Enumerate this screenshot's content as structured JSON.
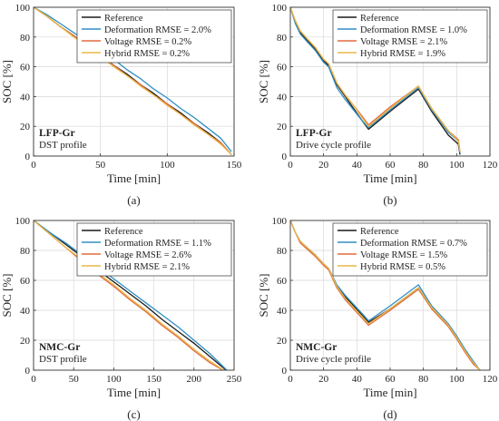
{
  "chart_data": [
    {
      "type": "line",
      "panel_label": "(a)",
      "annotation_title": "LFP-Gr",
      "annotation_subtitle": "DST profile",
      "xlabel": "Time [min]",
      "ylabel": "SOC [%]",
      "xlim": [
        0,
        150
      ],
      "ylim": [
        0,
        100
      ],
      "xticks": [
        0,
        50,
        100,
        150
      ],
      "yticks": [
        0,
        20,
        40,
        60,
        80,
        100
      ],
      "grid": true,
      "legend_position": "top-right",
      "colors": {
        "Reference": "#1a1a1a",
        "Deformation": "#2f8fc6",
        "Voltage": "#e26b3d",
        "Hybrid": "#e9b949"
      },
      "series": [
        {
          "name": "Reference",
          "x": [
            0,
            10,
            20,
            30,
            40,
            50,
            60,
            70,
            80,
            90,
            100,
            110,
            120,
            130,
            140,
            148
          ],
          "y": [
            100,
            94,
            87,
            81,
            74,
            68,
            61,
            55,
            48,
            42,
            35,
            29,
            22,
            16,
            9,
            1
          ]
        },
        {
          "name": "Deformation RMSE = 2.0%",
          "x": [
            0,
            10,
            20,
            30,
            40,
            50,
            60,
            70,
            80,
            90,
            100,
            110,
            120,
            130,
            140,
            148
          ],
          "y": [
            100,
            95,
            89,
            83,
            77,
            71,
            65,
            58,
            52,
            45,
            39,
            32,
            26,
            19,
            12,
            3
          ]
        },
        {
          "name": "Voltage RMSE = 0.2%",
          "x": [
            0,
            10,
            20,
            30,
            40,
            50,
            60,
            70,
            80,
            90,
            100,
            110,
            120,
            130,
            140,
            148
          ],
          "y": [
            100,
            94,
            87,
            81,
            74,
            67,
            61,
            54,
            48,
            41,
            35,
            28,
            22,
            15,
            9,
            1
          ]
        },
        {
          "name": "Hybrid RMSE = 0.2%",
          "x": [
            0,
            10,
            20,
            30,
            40,
            50,
            60,
            70,
            80,
            90,
            100,
            110,
            120,
            130,
            140,
            148
          ],
          "y": [
            100,
            94,
            87,
            80,
            74,
            67,
            60,
            54,
            47,
            41,
            34,
            28,
            21,
            15,
            8,
            1
          ]
        }
      ]
    },
    {
      "type": "line",
      "panel_label": "(b)",
      "annotation_title": "LFP-Gr",
      "annotation_subtitle": "Drive cycle profile",
      "xlabel": "Time [min]",
      "ylabel": "SOC [%]",
      "xlim": [
        0,
        120
      ],
      "ylim": [
        0,
        100
      ],
      "xticks": [
        0,
        20,
        40,
        60,
        80,
        100,
        120
      ],
      "yticks": [
        0,
        20,
        40,
        60,
        80,
        100
      ],
      "grid": true,
      "legend_position": "top-right",
      "colors": {
        "Reference": "#1a1a1a",
        "Deformation": "#2f8fc6",
        "Voltage": "#e26b3d",
        "Hybrid": "#e9b949"
      },
      "series": [
        {
          "name": "Reference",
          "x": [
            0,
            3,
            6,
            10,
            15,
            20,
            23,
            28,
            33,
            38,
            43,
            47,
            60,
            77,
            85,
            95,
            101,
            102
          ],
          "y": [
            100,
            90,
            83,
            78,
            72,
            64,
            61,
            48,
            40,
            32,
            24,
            18,
            30,
            45,
            30,
            14,
            8,
            1
          ]
        },
        {
          "name": "Deformation RMSE = 1.0%",
          "x": [
            0,
            3,
            6,
            10,
            15,
            20,
            23,
            28,
            33,
            38,
            43,
            47,
            60,
            77,
            85,
            95,
            101,
            102
          ],
          "y": [
            100,
            89,
            82,
            77,
            71,
            63,
            60,
            46,
            38,
            31,
            24,
            19,
            31,
            46,
            31,
            16,
            10,
            2
          ]
        },
        {
          "name": "Voltage RMSE = 2.1%",
          "x": [
            0,
            3,
            6,
            10,
            15,
            20,
            23,
            28,
            33,
            38,
            43,
            47,
            60,
            77,
            85,
            95,
            101,
            102
          ],
          "y": [
            100,
            91,
            84,
            79,
            73,
            65,
            62,
            49,
            41,
            34,
            27,
            21,
            33,
            47,
            32,
            17,
            11,
            3
          ]
        },
        {
          "name": "Hybrid RMSE = 1.9%",
          "x": [
            0,
            3,
            6,
            10,
            15,
            20,
            23,
            28,
            33,
            38,
            43,
            47,
            60,
            77,
            85,
            95,
            101,
            102
          ],
          "y": [
            100,
            91,
            84,
            79,
            73,
            65,
            62,
            49,
            41,
            34,
            26,
            20,
            32,
            47,
            32,
            17,
            10,
            3
          ]
        }
      ]
    },
    {
      "type": "line",
      "panel_label": "(c)",
      "annotation_title": "NMC-Gr",
      "annotation_subtitle": "DST profile",
      "xlabel": "Time [min]",
      "ylabel": "SOC [%]",
      "xlim": [
        0,
        250
      ],
      "ylim": [
        0,
        100
      ],
      "xticks": [
        0,
        50,
        100,
        150,
        200,
        250
      ],
      "yticks": [
        0,
        20,
        40,
        60,
        80,
        100
      ],
      "grid": true,
      "legend_position": "top-right",
      "colors": {
        "Reference": "#1a1a1a",
        "Deformation": "#2f8fc6",
        "Voltage": "#e26b3d",
        "Hybrid": "#e9b949"
      },
      "series": [
        {
          "name": "Reference",
          "x": [
            0,
            20,
            40,
            60,
            80,
            100,
            120,
            140,
            160,
            180,
            200,
            220,
            240
          ],
          "y": [
            100,
            92,
            84,
            76,
            67,
            59,
            51,
            43,
            34,
            26,
            18,
            9,
            0
          ]
        },
        {
          "name": "Deformation RMSE = 1.1%",
          "x": [
            0,
            20,
            40,
            60,
            80,
            100,
            120,
            140,
            160,
            180,
            200,
            220,
            241
          ],
          "y": [
            100,
            92,
            85,
            77,
            69,
            61,
            53,
            45,
            37,
            29,
            20,
            11,
            0
          ]
        },
        {
          "name": "Voltage RMSE = 2.6%",
          "x": [
            0,
            20,
            40,
            60,
            80,
            100,
            120,
            140,
            160,
            180,
            200,
            220,
            236
          ],
          "y": [
            100,
            91,
            82,
            73,
            64,
            56,
            47,
            39,
            30,
            22,
            13,
            5,
            0
          ]
        },
        {
          "name": "Hybrid RMSE = 2.1%",
          "x": [
            0,
            20,
            40,
            60,
            80,
            100,
            120,
            140,
            160,
            180,
            200,
            220,
            237
          ],
          "y": [
            100,
            91,
            82,
            74,
            65,
            57,
            48,
            40,
            31,
            23,
            14,
            6,
            0
          ]
        }
      ]
    },
    {
      "type": "line",
      "panel_label": "(d)",
      "annotation_title": "NMC-Gr",
      "annotation_subtitle": "Drive cycle profile",
      "xlabel": "Time [min]",
      "ylabel": "SOC [%]",
      "xlim": [
        0,
        120
      ],
      "ylim": [
        0,
        100
      ],
      "xticks": [
        0,
        20,
        40,
        60,
        80,
        100,
        120
      ],
      "yticks": [
        0,
        20,
        40,
        60,
        80,
        100
      ],
      "grid": true,
      "legend_position": "top-right",
      "colors": {
        "Reference": "#1a1a1a",
        "Deformation": "#2f8fc6",
        "Voltage": "#e26b3d",
        "Hybrid": "#e9b949"
      },
      "series": [
        {
          "name": "Reference",
          "x": [
            0,
            3,
            6,
            10,
            15,
            20,
            23,
            28,
            33,
            38,
            43,
            47,
            60,
            77,
            85,
            95,
            100,
            105,
            110,
            114
          ],
          "y": [
            100,
            92,
            86,
            82,
            77,
            71,
            68,
            56,
            49,
            43,
            37,
            32,
            41,
            55,
            42,
            30,
            22,
            13,
            5,
            0
          ]
        },
        {
          "name": "Deformation RMSE = 0.7%",
          "x": [
            0,
            3,
            6,
            10,
            15,
            20,
            23,
            28,
            33,
            38,
            43,
            47,
            60,
            77,
            85,
            95,
            100,
            105,
            110,
            114
          ],
          "y": [
            100,
            92,
            86,
            82,
            77,
            71,
            68,
            57,
            50,
            44,
            38,
            33,
            43,
            57,
            43,
            31,
            23,
            14,
            6,
            0
          ]
        },
        {
          "name": "Voltage RMSE = 1.5%",
          "x": [
            0,
            3,
            6,
            10,
            15,
            20,
            23,
            28,
            33,
            38,
            43,
            47,
            60,
            77,
            85,
            95,
            100,
            105,
            110,
            114
          ],
          "y": [
            100,
            92,
            85,
            81,
            76,
            70,
            67,
            55,
            47,
            41,
            35,
            30,
            40,
            54,
            41,
            29,
            21,
            12,
            4,
            0
          ]
        },
        {
          "name": "Hybrid RMSE = 0.5%",
          "x": [
            0,
            3,
            6,
            10,
            15,
            20,
            23,
            28,
            33,
            38,
            43,
            47,
            60,
            77,
            85,
            95,
            100,
            105,
            110,
            114
          ],
          "y": [
            100,
            92,
            86,
            82,
            77,
            71,
            68,
            56,
            48,
            42,
            36,
            31,
            41,
            55,
            42,
            30,
            22,
            13,
            5,
            0
          ]
        }
      ]
    }
  ]
}
